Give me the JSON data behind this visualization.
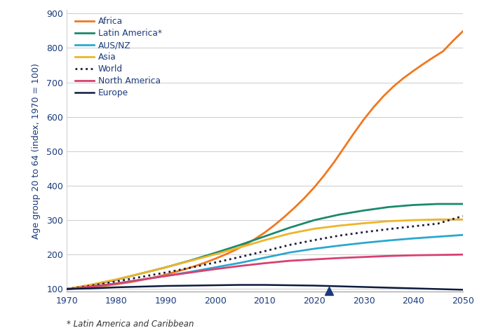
{
  "ylabel": "Age group 20 to 64 (index, 1970 = 100)",
  "footnote": "* Latin America and Caribbean",
  "ylim": [
    93,
    910
  ],
  "yticks": [
    100,
    200,
    300,
    400,
    500,
    600,
    700,
    800,
    900
  ],
  "xlim": [
    1970,
    2050
  ],
  "xticks": [
    1970,
    1980,
    1990,
    2000,
    2010,
    2020,
    2030,
    2040,
    2050
  ],
  "marker_year": 2023,
  "marker_y": 95,
  "series": {
    "Africa": {
      "color": "#F07820",
      "linestyle": "solid",
      "linewidth": 2.0,
      "years": [
        1970,
        1972,
        1974,
        1976,
        1978,
        1980,
        1982,
        1984,
        1986,
        1988,
        1990,
        1992,
        1994,
        1996,
        1998,
        2000,
        2002,
        2004,
        2006,
        2008,
        2010,
        2012,
        2014,
        2016,
        2018,
        2020,
        2022,
        2024,
        2026,
        2028,
        2030,
        2032,
        2034,
        2036,
        2038,
        2040,
        2042,
        2044,
        2046,
        2048,
        2050
      ],
      "values": [
        100,
        102,
        104,
        107,
        110,
        114,
        118,
        123,
        129,
        135,
        142,
        150,
        158,
        167,
        177,
        188,
        200,
        213,
        228,
        245,
        264,
        286,
        310,
        336,
        364,
        395,
        430,
        468,
        510,
        552,
        592,
        628,
        660,
        688,
        712,
        733,
        753,
        772,
        790,
        820,
        848
      ]
    },
    "Latin America*": {
      "color": "#1A8A6A",
      "linestyle": "solid",
      "linewidth": 2.0,
      "years": [
        1970,
        1975,
        1980,
        1985,
        1990,
        1995,
        2000,
        2005,
        2010,
        2015,
        2020,
        2025,
        2030,
        2035,
        2040,
        2045,
        2050
      ],
      "values": [
        100,
        112,
        127,
        145,
        163,
        183,
        205,
        228,
        253,
        278,
        300,
        316,
        328,
        338,
        344,
        347,
        347
      ]
    },
    "AUS/NZ": {
      "color": "#2BA8D0",
      "linestyle": "solid",
      "linewidth": 2.0,
      "years": [
        1970,
        1975,
        1980,
        1985,
        1990,
        1995,
        2000,
        2005,
        2010,
        2015,
        2020,
        2025,
        2030,
        2035,
        2040,
        2045,
        2050
      ],
      "values": [
        100,
        107,
        116,
        127,
        138,
        150,
        163,
        176,
        191,
        206,
        217,
        226,
        234,
        241,
        247,
        252,
        257
      ]
    },
    "Asia": {
      "color": "#F0B429",
      "linestyle": "solid",
      "linewidth": 2.0,
      "years": [
        1970,
        1975,
        1980,
        1985,
        1990,
        1995,
        2000,
        2005,
        2010,
        2015,
        2020,
        2025,
        2030,
        2035,
        2040,
        2045,
        2050
      ],
      "values": [
        100,
        113,
        128,
        145,
        163,
        182,
        201,
        221,
        242,
        261,
        275,
        284,
        291,
        297,
        300,
        302,
        302
      ]
    },
    "World": {
      "color": "#1A1A3A",
      "linestyle": "dotted",
      "linewidth": 2.0,
      "years": [
        1970,
        1975,
        1980,
        1985,
        1990,
        1995,
        2000,
        2005,
        2010,
        2015,
        2020,
        2025,
        2030,
        2035,
        2040,
        2045,
        2050
      ],
      "values": [
        100,
        110,
        122,
        135,
        148,
        162,
        177,
        193,
        210,
        228,
        242,
        255,
        265,
        274,
        282,
        290,
        312
      ]
    },
    "North America": {
      "color": "#D94070",
      "linestyle": "solid",
      "linewidth": 2.0,
      "years": [
        1970,
        1975,
        1980,
        1985,
        1990,
        1995,
        2000,
        2005,
        2010,
        2015,
        2020,
        2025,
        2030,
        2035,
        2040,
        2045,
        2050
      ],
      "values": [
        100,
        107,
        116,
        127,
        138,
        148,
        158,
        167,
        175,
        182,
        186,
        190,
        193,
        196,
        198,
        199,
        200
      ]
    },
    "Europe": {
      "color": "#0D1B3E",
      "linestyle": "solid",
      "linewidth": 1.8,
      "years": [
        1970,
        1975,
        1980,
        1985,
        1990,
        1995,
        2000,
        2005,
        2010,
        2015,
        2020,
        2025,
        2030,
        2035,
        2040,
        2045,
        2050
      ],
      "values": [
        100,
        102,
        105,
        107,
        109,
        110,
        111,
        112,
        112,
        111,
        110,
        108,
        106,
        104,
        102,
        100,
        98
      ]
    }
  },
  "background_color": "#FFFFFF",
  "grid_color": "#CCCCCC",
  "label_color": "#1A3A7A",
  "tick_color": "#1A3A7A",
  "footnote_color": "#333333",
  "legend_label_color": "#1A3A7A"
}
